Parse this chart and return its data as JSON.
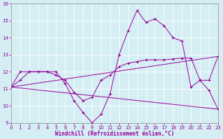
{
  "x": [
    0,
    1,
    2,
    3,
    4,
    5,
    6,
    7,
    8,
    9,
    10,
    11,
    12,
    13,
    14,
    15,
    16,
    17,
    18,
    19,
    20,
    21,
    22,
    23
  ],
  "series1": [
    11.1,
    11.5,
    12.0,
    12.0,
    12.0,
    12.0,
    11.3,
    10.3,
    9.6,
    9.0,
    9.5,
    10.7,
    13.0,
    14.4,
    15.6,
    14.9,
    15.1,
    14.7,
    14.0,
    13.8,
    11.1,
    11.5,
    10.9,
    9.8
  ],
  "series2_x": [
    0,
    23
  ],
  "series2_y": [
    11.1,
    12.9
  ],
  "series3_x": [
    0,
    23
  ],
  "series3_y": [
    11.1,
    9.8
  ],
  "series4": [
    11.1,
    12.0,
    12.0,
    12.0,
    12.0,
    11.8,
    11.5,
    10.8,
    10.3,
    10.5,
    11.5,
    11.8,
    12.3,
    12.5,
    12.6,
    12.7,
    12.7,
    12.7,
    12.75,
    12.8,
    12.8,
    11.5,
    11.5,
    12.9
  ],
  "ylim": [
    9,
    16
  ],
  "xlim": [
    0,
    23
  ],
  "yticks": [
    9,
    10,
    11,
    12,
    13,
    14,
    15,
    16
  ],
  "xticks": [
    0,
    1,
    2,
    3,
    4,
    5,
    6,
    7,
    8,
    9,
    10,
    11,
    12,
    13,
    14,
    15,
    16,
    17,
    18,
    19,
    20,
    21,
    22,
    23
  ],
  "line_color": "#990099",
  "bg_color": "#d4eef4",
  "grid_color": "#b0d8e0",
  "xlabel": "Windchill (Refroidissement éolien,°C)"
}
